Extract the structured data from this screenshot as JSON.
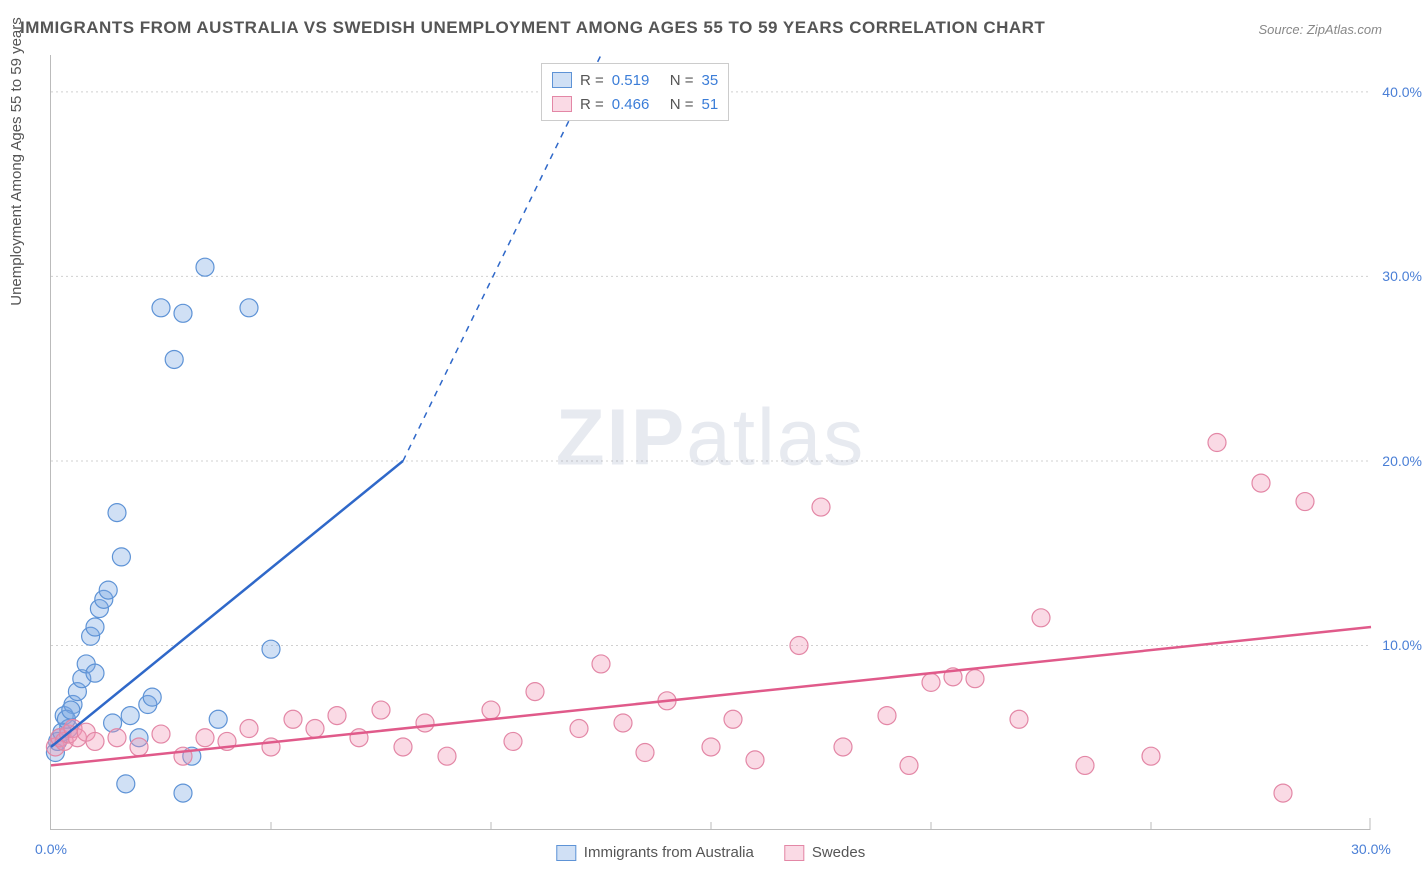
{
  "title": "IMMIGRANTS FROM AUSTRALIA VS SWEDISH UNEMPLOYMENT AMONG AGES 55 TO 59 YEARS CORRELATION CHART",
  "source_prefix": "Source: ",
  "source_name": "ZipAtlas.com",
  "ylabel": "Unemployment Among Ages 55 to 59 years",
  "watermark_bold": "ZIP",
  "watermark_light": "atlas",
  "chart": {
    "type": "scatter",
    "xlim": [
      0,
      30
    ],
    "ylim": [
      0,
      42
    ],
    "xtick_values": [
      0,
      15,
      30
    ],
    "xtick_labels": [
      "0.0%",
      "",
      "30.0%"
    ],
    "xtick_minor": [
      5,
      10,
      15,
      20,
      25
    ],
    "ytick_values": [
      10,
      20,
      30,
      40
    ],
    "ytick_labels": [
      "10.0%",
      "20.0%",
      "30.0%",
      "40.0%"
    ],
    "grid_color": "#d5d5d5",
    "axis_color": "#bbbbbb",
    "tick_label_color_x": "#4a7fd6",
    "tick_label_color_y": "#4a7fd6",
    "background_color": "#ffffff",
    "marker_radius": 9,
    "marker_stroke_width": 1.2,
    "trendline_width": 2.5,
    "series": [
      {
        "name": "Immigrants from Australia",
        "fill": "rgba(120,165,225,0.35)",
        "stroke": "#5e93d6",
        "trend_color": "#2f68c9",
        "points": [
          [
            0.2,
            5.0
          ],
          [
            0.3,
            6.2
          ],
          [
            0.4,
            5.5
          ],
          [
            0.5,
            6.8
          ],
          [
            0.6,
            7.5
          ],
          [
            0.7,
            8.2
          ],
          [
            0.8,
            9.0
          ],
          [
            0.9,
            10.5
          ],
          [
            1.0,
            11.0
          ],
          [
            1.1,
            12.0
          ],
          [
            1.2,
            12.5
          ],
          [
            1.3,
            13.0
          ],
          [
            1.0,
            8.5
          ],
          [
            1.5,
            17.2
          ],
          [
            1.6,
            14.8
          ],
          [
            1.8,
            6.2
          ],
          [
            2.0,
            5.0
          ],
          [
            2.2,
            6.8
          ],
          [
            2.5,
            28.3
          ],
          [
            2.8,
            25.5
          ],
          [
            3.0,
            28.0
          ],
          [
            3.2,
            4.0
          ],
          [
            3.5,
            30.5
          ],
          [
            3.8,
            6.0
          ],
          [
            4.5,
            28.3
          ],
          [
            5.0,
            9.8
          ],
          [
            0.1,
            4.2
          ],
          [
            0.15,
            4.8
          ],
          [
            0.25,
            5.3
          ],
          [
            0.35,
            6.0
          ],
          [
            0.45,
            6.5
          ],
          [
            2.3,
            7.2
          ],
          [
            1.7,
            2.5
          ],
          [
            3.0,
            2.0
          ],
          [
            1.4,
            5.8
          ]
        ],
        "trend_solid": {
          "x1": 0,
          "y1": 4.5,
          "x2": 8,
          "y2": 20
        },
        "trend_dash": {
          "x1": 8,
          "y1": 20,
          "x2": 12.5,
          "y2": 42
        }
      },
      {
        "name": "Swedes",
        "fill": "rgba(240,150,180,0.35)",
        "stroke": "#e387a6",
        "trend_color": "#e05a8a",
        "points": [
          [
            0.1,
            4.5
          ],
          [
            0.2,
            5.0
          ],
          [
            0.3,
            4.8
          ],
          [
            0.4,
            5.2
          ],
          [
            0.5,
            5.5
          ],
          [
            0.6,
            5.0
          ],
          [
            0.8,
            5.3
          ],
          [
            1.0,
            4.8
          ],
          [
            1.5,
            5.0
          ],
          [
            2.0,
            4.5
          ],
          [
            2.5,
            5.2
          ],
          [
            3.0,
            4.0
          ],
          [
            3.5,
            5.0
          ],
          [
            4.0,
            4.8
          ],
          [
            4.5,
            5.5
          ],
          [
            5.0,
            4.5
          ],
          [
            5.5,
            6.0
          ],
          [
            6.0,
            5.5
          ],
          [
            6.5,
            6.2
          ],
          [
            7.0,
            5.0
          ],
          [
            7.5,
            6.5
          ],
          [
            8.0,
            4.5
          ],
          [
            8.5,
            5.8
          ],
          [
            9.0,
            4.0
          ],
          [
            10.0,
            6.5
          ],
          [
            10.5,
            4.8
          ],
          [
            11.0,
            7.5
          ],
          [
            12.0,
            5.5
          ],
          [
            12.5,
            9.0
          ],
          [
            13.0,
            5.8
          ],
          [
            13.5,
            4.2
          ],
          [
            14.0,
            7.0
          ],
          [
            15.0,
            4.5
          ],
          [
            15.5,
            6.0
          ],
          [
            16.0,
            3.8
          ],
          [
            17.0,
            10.0
          ],
          [
            17.5,
            17.5
          ],
          [
            18.0,
            4.5
          ],
          [
            19.0,
            6.2
          ],
          [
            19.5,
            3.5
          ],
          [
            20.0,
            8.0
          ],
          [
            20.5,
            8.3
          ],
          [
            21.0,
            8.2
          ],
          [
            22.0,
            6.0
          ],
          [
            22.5,
            11.5
          ],
          [
            23.5,
            3.5
          ],
          [
            25.0,
            4.0
          ],
          [
            26.5,
            21.0
          ],
          [
            27.5,
            18.8
          ],
          [
            28.0,
            2.0
          ],
          [
            28.5,
            17.8
          ]
        ],
        "trend_solid": {
          "x1": 0,
          "y1": 3.5,
          "x2": 30,
          "y2": 11.0
        }
      }
    ]
  },
  "legend_top": {
    "rows": [
      {
        "swatch_fill": "rgba(120,165,225,0.35)",
        "swatch_stroke": "#5e93d6",
        "r_label": "R =",
        "r_val": "0.519",
        "n_label": "N =",
        "n_val": "35"
      },
      {
        "swatch_fill": "rgba(240,150,180,0.35)",
        "swatch_stroke": "#e387a6",
        "r_label": "R =",
        "r_val": "0.466",
        "n_label": "N =",
        "n_val": "51"
      }
    ],
    "value_color": "#3b7dd8",
    "text_color": "#555"
  },
  "legend_bottom": {
    "items": [
      {
        "swatch_fill": "rgba(120,165,225,0.35)",
        "swatch_stroke": "#5e93d6",
        "label": "Immigrants from Australia"
      },
      {
        "swatch_fill": "rgba(240,150,180,0.35)",
        "swatch_stroke": "#e387a6",
        "label": "Swedes"
      }
    ]
  }
}
